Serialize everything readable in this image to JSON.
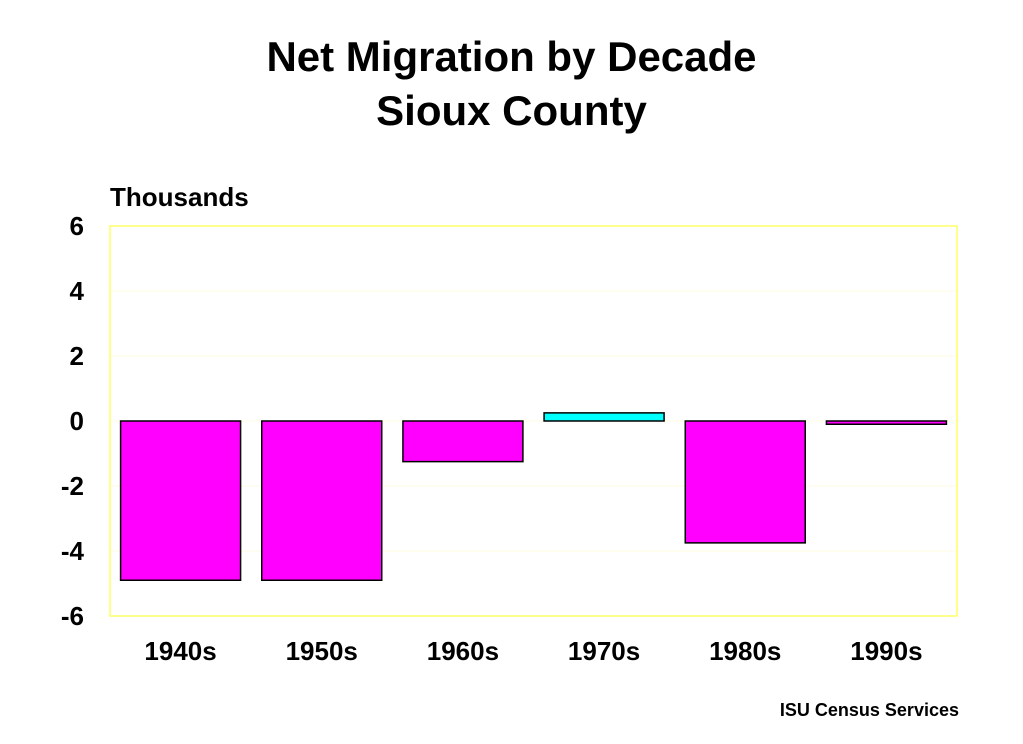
{
  "title_line1": "Net Migration by Decade",
  "title_line2": "Sioux County",
  "source": "ISU Census Services",
  "chart_data": {
    "type": "bar",
    "title": "Net Migration by Decade Sioux County",
    "ylabel": "Thousands",
    "xlabel": "",
    "categories": [
      "1940s",
      "1950s",
      "1960s",
      "1970s",
      "1980s",
      "1990s"
    ],
    "values": [
      -4.9,
      -4.9,
      -1.25,
      0.25,
      -3.75,
      -0.1
    ],
    "ylim": [
      -6,
      6
    ],
    "yticks": [
      6,
      4,
      2,
      0,
      -2,
      -4,
      -6
    ],
    "ytick_labels": [
      "6",
      "4",
      "2",
      "0",
      "-2",
      "-4",
      "-6"
    ],
    "grid": true,
    "colors": {
      "negative": "#ff00ff",
      "positive": "#00ffff",
      "frame": "#ffff66",
      "grid": "#fffbe0"
    }
  }
}
